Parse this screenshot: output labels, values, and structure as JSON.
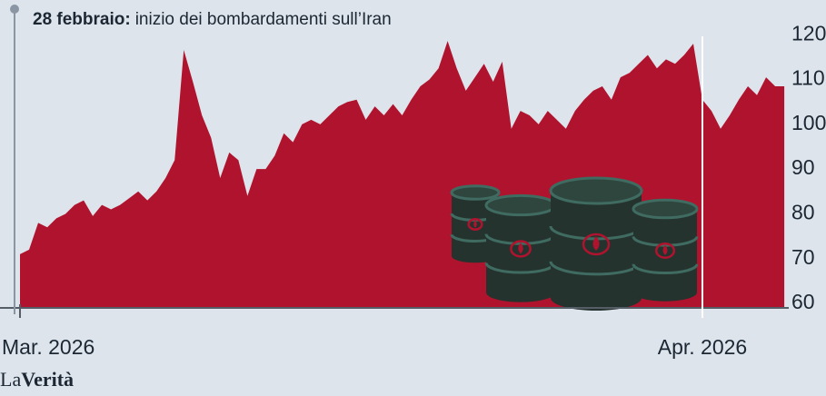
{
  "chart_data": {
    "type": "area",
    "annotation": {
      "date": "28 febbraio:",
      "text": "inizio dei bombardamenti sull’Iran"
    },
    "brand": {
      "prefix": "La",
      "name": "Verità"
    },
    "categories": [
      "Mar. 2026",
      null,
      null,
      null,
      null,
      null,
      null,
      null,
      null,
      null,
      null,
      null,
      null,
      null,
      null,
      null,
      null,
      null,
      null,
      null,
      null,
      null,
      null,
      null,
      null,
      null,
      null,
      null,
      null,
      null,
      null,
      null,
      null,
      null,
      null,
      null,
      null,
      null,
      null,
      null,
      null,
      null,
      null,
      null,
      null,
      null,
      null,
      null,
      null,
      null,
      null,
      null,
      null,
      null,
      null,
      null,
      null,
      null,
      null,
      null,
      null,
      null,
      null,
      null,
      null,
      null,
      null,
      null,
      null,
      null,
      null,
      null,
      null,
      null,
      null,
      "Apr. 2026",
      null,
      null,
      null,
      null,
      null,
      null,
      null,
      null,
      null
    ],
    "values": [
      71,
      72,
      78,
      77,
      79,
      80,
      82,
      83,
      79.5,
      82,
      81,
      82,
      83.5,
      85,
      83,
      85,
      88,
      92,
      116.6,
      109.5,
      102,
      97,
      88,
      93.7,
      92,
      84,
      90,
      90,
      93,
      98,
      96,
      100,
      101,
      100,
      102,
      104,
      105,
      105.5,
      101,
      104,
      102,
      104.5,
      102,
      105.5,
      108.5,
      110,
      112.5,
      118.6,
      112.5,
      107.5,
      110.5,
      113.5,
      109.5,
      114,
      99,
      103,
      102,
      100,
      103,
      101,
      99,
      103,
      105.5,
      107.5,
      108.5,
      105.5,
      110.5,
      111.5,
      113.5,
      115.5,
      112.5,
      114.5,
      113.5,
      115.5,
      118,
      105.5,
      103,
      99,
      102,
      105.5,
      108.5,
      106.5,
      110.5,
      108.5,
      108.5
    ],
    "color": "#b0132e",
    "ylim": [
      59,
      125
    ],
    "yticks": [
      60,
      70,
      80,
      90,
      100,
      110,
      120
    ]
  }
}
